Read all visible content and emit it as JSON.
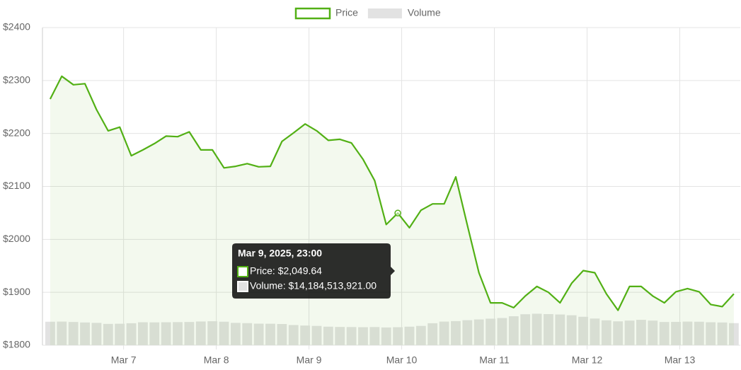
{
  "chart_data": {
    "type": "line",
    "x": [
      "2025-03-06T05:00",
      "2025-03-06T08:00",
      "2025-03-06T11:00",
      "2025-03-06T14:00",
      "2025-03-06T17:00",
      "2025-03-06T20:00",
      "2025-03-06T23:00",
      "2025-03-07T02:00",
      "2025-03-07T05:00",
      "2025-03-07T08:00",
      "2025-03-07T11:00",
      "2025-03-07T14:00",
      "2025-03-07T17:00",
      "2025-03-07T20:00",
      "2025-03-07T23:00",
      "2025-03-08T02:00",
      "2025-03-08T05:00",
      "2025-03-08T08:00",
      "2025-03-08T11:00",
      "2025-03-08T14:00",
      "2025-03-08T17:00",
      "2025-03-08T20:00",
      "2025-03-08T23:00",
      "2025-03-09T02:00",
      "2025-03-09T05:00",
      "2025-03-09T08:00",
      "2025-03-09T11:00",
      "2025-03-09T14:00",
      "2025-03-09T17:00",
      "2025-03-09T20:00",
      "2025-03-09T23:00",
      "2025-03-10T02:00",
      "2025-03-10T05:00",
      "2025-03-10T08:00",
      "2025-03-10T11:00",
      "2025-03-10T14:00",
      "2025-03-10T17:00",
      "2025-03-10T20:00",
      "2025-03-10T23:00",
      "2025-03-11T02:00",
      "2025-03-11T05:00",
      "2025-03-11T08:00",
      "2025-03-11T11:00",
      "2025-03-11T14:00",
      "2025-03-11T17:00",
      "2025-03-11T20:00",
      "2025-03-11T23:00",
      "2025-03-12T02:00",
      "2025-03-12T05:00",
      "2025-03-12T08:00",
      "2025-03-12T11:00",
      "2025-03-12T14:00",
      "2025-03-12T17:00",
      "2025-03-12T20:00",
      "2025-03-12T23:00",
      "2025-03-13T02:00",
      "2025-03-13T05:00",
      "2025-03-13T08:00",
      "2025-03-13T11:00",
      "2025-03-13T14:00"
    ],
    "series": [
      {
        "name": "Price",
        "color": "#52b015",
        "values": [
          2265,
          2308,
          2292,
          2294,
          2245,
          2205,
          2212,
          2158,
          2169,
          2181,
          2195,
          2194,
          2203,
          2169,
          2169,
          2135,
          2138,
          2143,
          2137,
          2138,
          2185,
          2201,
          2218,
          2205,
          2187,
          2189,
          2182,
          2151,
          2111,
          2028,
          2049.64,
          2022,
          2055,
          2067,
          2067,
          2118,
          2027,
          1937,
          1880,
          1880,
          1871,
          1893,
          1911,
          1900,
          1880,
          1917,
          1941,
          1937,
          1897,
          1866,
          1911,
          1911,
          1893,
          1880,
          1901,
          1907,
          1901,
          1877,
          1873,
          1897
        ]
      },
      {
        "name": "Volume",
        "color": "#e2e2e2",
        "type": "bar",
        "axis": "y2",
        "values": [
          18500000000,
          18600000000,
          18300000000,
          17900000000,
          17600000000,
          16800000000,
          16900000000,
          17300000000,
          18100000000,
          18000000000,
          18100000000,
          18200000000,
          18300000000,
          18700000000,
          18900000000,
          18500000000,
          17600000000,
          17400000000,
          17000000000,
          16900000000,
          16700000000,
          15900000000,
          15500000000,
          15200000000,
          14600000000,
          14400000000,
          14300000000,
          14200000000,
          14300000000,
          14000000000,
          14184513921,
          14600000000,
          15200000000,
          17300000000,
          18600000000,
          19000000000,
          19700000000,
          20300000000,
          20900000000,
          21400000000,
          22800000000,
          24400000000,
          24800000000,
          24500000000,
          24200000000,
          23600000000,
          22400000000,
          21000000000,
          19600000000,
          18800000000,
          19400000000,
          20000000000,
          19400000000,
          18300000000,
          18400000000,
          18600000000,
          18500000000,
          18100000000,
          17900000000,
          17400000000
        ]
      }
    ],
    "xlim": [
      "2025-03-06T03:00",
      "2025-03-13T15:40"
    ],
    "xticks": [
      {
        "value": "2025-03-07T00:00",
        "label": "Mar 7"
      },
      {
        "value": "2025-03-08T00:00",
        "label": "Mar 8"
      },
      {
        "value": "2025-03-09T00:00",
        "label": "Mar 9"
      },
      {
        "value": "2025-03-10T00:00",
        "label": "Mar 10"
      },
      {
        "value": "2025-03-11T00:00",
        "label": "Mar 11"
      },
      {
        "value": "2025-03-12T00:00",
        "label": "Mar 12"
      },
      {
        "value": "2025-03-13T00:00",
        "label": "Mar 13"
      }
    ],
    "ylim": [
      1800,
      2400
    ],
    "yticks": [
      {
        "value": 1800,
        "label": "$1800"
      },
      {
        "value": 1900,
        "label": "$1900"
      },
      {
        "value": 2000,
        "label": "$2000"
      },
      {
        "value": 2100,
        "label": "$2100"
      },
      {
        "value": 2200,
        "label": "$2200"
      },
      {
        "value": 2300,
        "label": "$2300"
      },
      {
        "value": 2400,
        "label": "$2400"
      }
    ],
    "y2lim": [
      0,
      250000000000
    ],
    "grid": true,
    "legend": "top",
    "tooltip": {
      "index": 30,
      "title": "Mar 9, 2025, 23:00",
      "items": [
        "Price: $2,049.64",
        "Volume: $14,184,513,921.00"
      ]
    }
  }
}
